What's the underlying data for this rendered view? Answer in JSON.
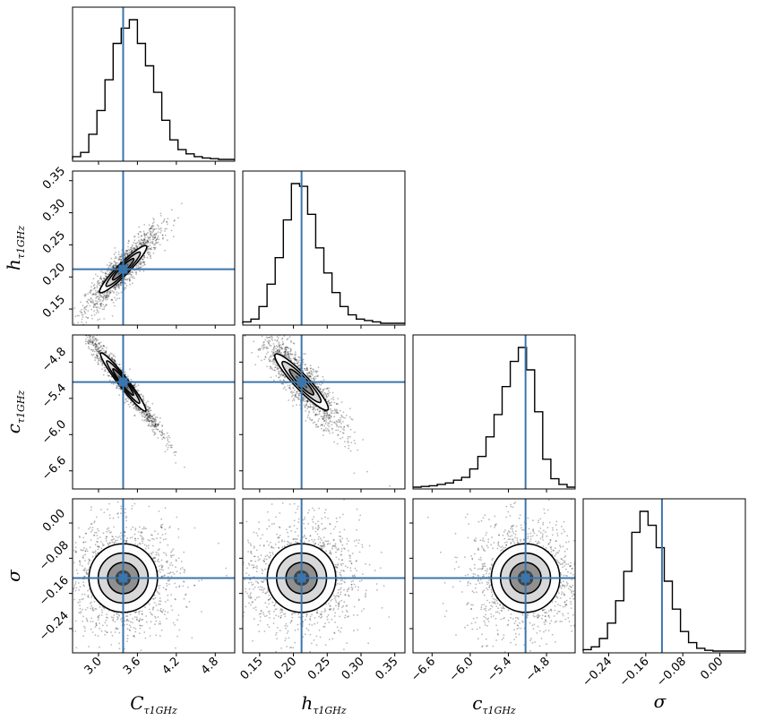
{
  "chart_data": {
    "type": "corner",
    "parameters": [
      {
        "symbol": "C",
        "subscript": "τ1GHz",
        "range": [
          2.6,
          5.1
        ],
        "ticks": [
          "3.0",
          "3.6",
          "4.2",
          "4.8"
        ],
        "ticks_values": [
          3.0,
          3.6,
          4.2,
          4.8
        ],
        "truth": 3.38
      },
      {
        "symbol": "h",
        "subscript": "τ1GHz",
        "range": [
          0.125,
          0.365
        ],
        "ticks": [
          "0.15",
          "0.20",
          "0.25",
          "0.30",
          "0.35"
        ],
        "ticks_values": [
          0.15,
          0.2,
          0.25,
          0.3,
          0.35
        ],
        "truth": 0.212
      },
      {
        "symbol": "c",
        "subscript": "τ1GHz",
        "range": [
          -6.9,
          -4.35
        ],
        "ticks": [
          "−6.6",
          "−6.0",
          "−5.4",
          "−4.8"
        ],
        "ticks_values": [
          -6.6,
          -6.0,
          -5.4,
          -4.8
        ],
        "truth": -5.13
      },
      {
        "symbol": "σ",
        "subscript": "",
        "range": [
          -0.295,
          0.055
        ],
        "ticks": [
          "−0.24",
          "−0.16",
          "−0.08",
          "0.00"
        ],
        "ticks_values": [
          -0.24,
          -0.16,
          -0.08,
          0.0
        ],
        "truth": -0.125
      }
    ],
    "marginals": [
      [
        0.02,
        0.05,
        0.18,
        0.35,
        0.57,
        0.83,
        0.94,
        1.0,
        0.83,
        0.67,
        0.48,
        0.28,
        0.14,
        0.07,
        0.04,
        0.02,
        0.01,
        0.005,
        0.0,
        0.0
      ],
      [
        0.01,
        0.03,
        0.12,
        0.28,
        0.47,
        0.74,
        1.0,
        0.98,
        0.78,
        0.54,
        0.36,
        0.22,
        0.12,
        0.06,
        0.03,
        0.02,
        0.01,
        0.0,
        0.0,
        0.0
      ],
      [
        0.0,
        0.005,
        0.01,
        0.02,
        0.03,
        0.05,
        0.07,
        0.13,
        0.22,
        0.36,
        0.52,
        0.72,
        0.9,
        1.0,
        0.84,
        0.54,
        0.2,
        0.06,
        0.02,
        0.0
      ],
      [
        0.01,
        0.03,
        0.09,
        0.2,
        0.36,
        0.57,
        0.85,
        1.0,
        0.9,
        0.74,
        0.5,
        0.3,
        0.14,
        0.06,
        0.02,
        0.005,
        0.0,
        0.0,
        0.0,
        0.0
      ]
    ],
    "correlations": {
      "1-0": 0.9,
      "2-0": -0.97,
      "2-1": -0.88,
      "3-0": 0.0,
      "3-1": 0.0,
      "3-2": 0.0
    },
    "truth_color": "#3a76ad",
    "hist_color": "#000000",
    "density_colormap": "grays",
    "grid": false
  }
}
